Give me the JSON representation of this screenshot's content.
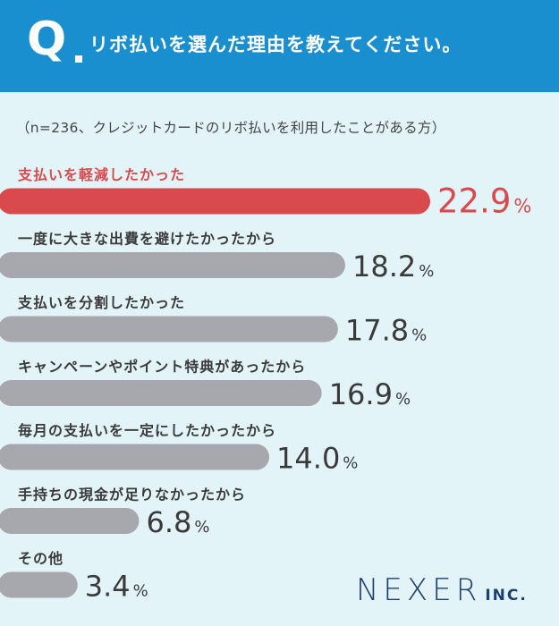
{
  "header": {
    "q_mark": "Q",
    "question": "リボ払いを選んだ理由を教えてください。"
  },
  "note": "（n=236、クレジットカードのリボ払いを利用したことがある方）",
  "brand": {
    "main": "NEXER",
    "sub": "INC."
  },
  "colors": {
    "header": "#1a8fcf",
    "background": "#e3f4f9",
    "highlight": "#d94a4c",
    "bar": "#a7a8ad",
    "text": "#3a3a3a",
    "logo": "#1d3f6e"
  },
  "chart_data": {
    "type": "bar",
    "orientation": "horizontal",
    "unit": "%",
    "categories": [
      "支払いを軽減したかった",
      "一度に大きな出費を避けたかったから",
      "支払いを分割したかった",
      "キャンペーンやポイント特典があったから",
      "毎月の支払いを一定にしたかったから",
      "手持ちの現金が足りなかったから",
      "その他"
    ],
    "values": [
      22.9,
      18.2,
      17.8,
      16.9,
      14.0,
      6.8,
      3.4
    ],
    "labels": [
      "22.9",
      "18.2",
      "17.8",
      "16.9",
      "14.0",
      "6.8",
      "3.4"
    ],
    "highlight_index": 0
  }
}
